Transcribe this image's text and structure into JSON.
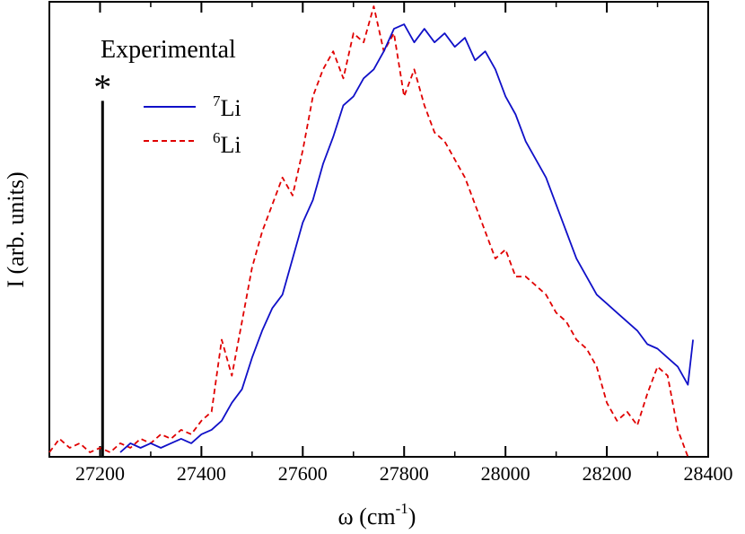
{
  "chart_data": {
    "type": "line",
    "title": "",
    "xlabel": {
      "main": "ω (cm",
      "sup": "-1",
      "tail": ")"
    },
    "ylabel": "I (arb. units)",
    "xlim": [
      27100,
      28400
    ],
    "ylim": [
      0,
      1.0
    ],
    "xticks": [
      27200,
      27400,
      27600,
      27800,
      28000,
      28200,
      28400
    ],
    "xtick_labels": [
      "27200",
      "27400",
      "27600",
      "27800",
      "28000",
      "28200",
      "28400"
    ],
    "annotation": "Experimental",
    "marker": {
      "x": 27205,
      "height": 0.79,
      "label": "*"
    },
    "legend_position": "top-left",
    "series": [
      {
        "name": "7Li",
        "legend_sup": "7",
        "legend_base": "Li",
        "color": "#1010c8",
        "dash": "solid",
        "x": [
          27240,
          27260,
          27280,
          27300,
          27320,
          27340,
          27360,
          27380,
          27400,
          27420,
          27440,
          27460,
          27480,
          27500,
          27520,
          27540,
          27560,
          27580,
          27600,
          27620,
          27640,
          27660,
          27680,
          27700,
          27720,
          27740,
          27760,
          27780,
          27800,
          27820,
          27840,
          27860,
          27880,
          27900,
          27920,
          27940,
          27960,
          27980,
          28000,
          28020,
          28040,
          28060,
          28080,
          28100,
          28120,
          28140,
          28160,
          28180,
          28200,
          28220,
          28240,
          28260,
          28280,
          28300,
          28320,
          28340,
          28360,
          28370
        ],
        "values": [
          0.01,
          0.03,
          0.02,
          0.03,
          0.02,
          0.03,
          0.04,
          0.03,
          0.05,
          0.06,
          0.08,
          0.12,
          0.15,
          0.22,
          0.28,
          0.33,
          0.36,
          0.44,
          0.52,
          0.57,
          0.65,
          0.71,
          0.78,
          0.8,
          0.84,
          0.86,
          0.9,
          0.95,
          0.96,
          0.92,
          0.95,
          0.92,
          0.94,
          0.91,
          0.93,
          0.88,
          0.9,
          0.86,
          0.8,
          0.76,
          0.7,
          0.66,
          0.62,
          0.56,
          0.5,
          0.44,
          0.4,
          0.36,
          0.34,
          0.32,
          0.3,
          0.28,
          0.25,
          0.24,
          0.22,
          0.2,
          0.16,
          0.26
        ]
      },
      {
        "name": "6Li",
        "legend_sup": "6",
        "legend_base": "Li",
        "color": "#e00000",
        "dash": "dashed",
        "x": [
          27100,
          27120,
          27140,
          27160,
          27180,
          27200,
          27220,
          27240,
          27260,
          27280,
          27300,
          27320,
          27340,
          27360,
          27380,
          27400,
          27420,
          27440,
          27460,
          27480,
          27500,
          27520,
          27540,
          27560,
          27580,
          27600,
          27620,
          27640,
          27660,
          27680,
          27700,
          27720,
          27740,
          27760,
          27780,
          27800,
          27820,
          27840,
          27860,
          27880,
          27900,
          27920,
          27940,
          27960,
          27980,
          28000,
          28020,
          28040,
          28060,
          28080,
          28100,
          28120,
          28140,
          28160,
          28180,
          28200,
          28220,
          28240,
          28260,
          28280,
          28300,
          28320,
          28340,
          28360
        ],
        "values": [
          0.01,
          0.04,
          0.02,
          0.03,
          0.01,
          0.02,
          0.01,
          0.03,
          0.02,
          0.04,
          0.03,
          0.05,
          0.04,
          0.06,
          0.05,
          0.08,
          0.1,
          0.26,
          0.18,
          0.3,
          0.42,
          0.5,
          0.56,
          0.62,
          0.58,
          0.68,
          0.8,
          0.86,
          0.9,
          0.84,
          0.94,
          0.92,
          1.0,
          0.9,
          0.94,
          0.8,
          0.86,
          0.78,
          0.72,
          0.7,
          0.66,
          0.62,
          0.56,
          0.5,
          0.44,
          0.46,
          0.4,
          0.4,
          0.38,
          0.36,
          0.32,
          0.3,
          0.26,
          0.24,
          0.2,
          0.12,
          0.08,
          0.1,
          0.07,
          0.14,
          0.2,
          0.18,
          0.06,
          0.0
        ]
      }
    ]
  }
}
